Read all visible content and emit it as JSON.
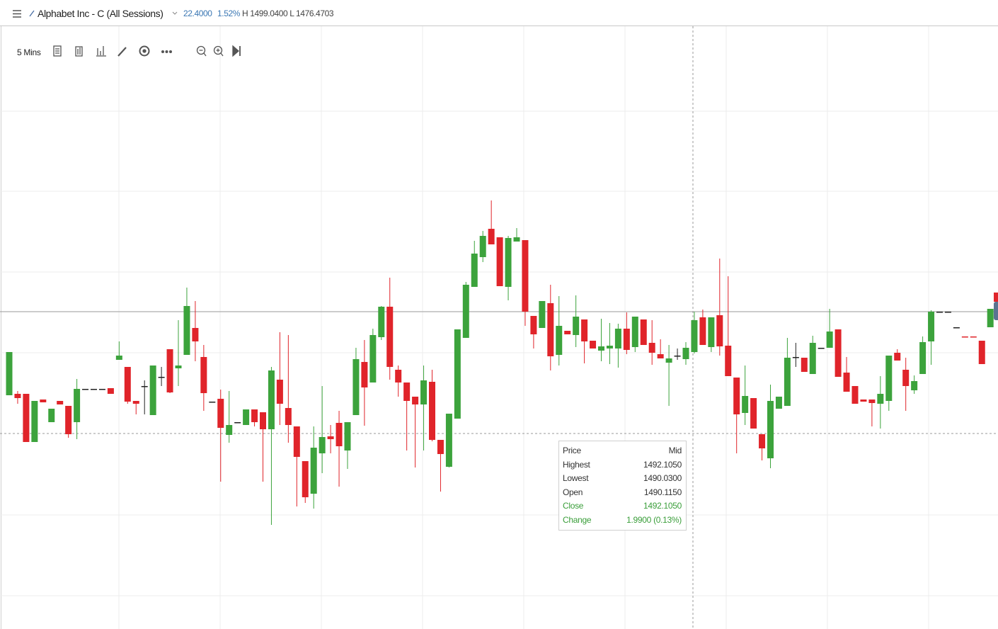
{
  "header": {
    "symbol": "Alphabet Inc - C (All Sessions)",
    "change": "22.4000",
    "change_pct": "1.52%",
    "range": "H 1499.0400 L 1476.4703"
  },
  "toolbar": {
    "interval": "5 Mins"
  },
  "tooltip": {
    "rows": [
      [
        "Price",
        "Mid"
      ],
      [
        "Highest",
        "1492.1050"
      ],
      [
        "Lowest",
        "1490.0300"
      ],
      [
        "Open",
        "1490.1150"
      ],
      [
        "Close",
        "1492.1050"
      ],
      [
        "Change",
        "1.9900 (0.13%)"
      ]
    ]
  },
  "chart_data": {
    "type": "candlestick",
    "ylim": [
      1468.6,
      1511.15
    ],
    "up_color": "#3ca33c",
    "down_color": "#e0242a",
    "flat_color": "#222222",
    "open": [
      1485.1,
      1485.2,
      1485.2,
      1481.8,
      1484.8,
      1483.2,
      1484.7,
      1484.35,
      1483.2,
      1485.55,
      1485.55,
      1485.55,
      1485.6,
      1487.6,
      1487.1,
      1484.7,
      1485.75,
      1483.7,
      1486.4,
      1488.35,
      1487.0,
      1487.95,
      1489.85,
      1487.8,
      1484.65,
      1484.85,
      1482.3,
      1483.2,
      1483.0,
      1484.1,
      1483.9,
      1482.7,
      1486.2,
      1484.2,
      1482.9,
      1480.45,
      1478.15,
      1481.0,
      1482.2,
      1483.15,
      1481.2,
      1483.7,
      1487.45,
      1486.0,
      1489.2,
      1491.35,
      1486.9,
      1486.0,
      1485.0,
      1484.45,
      1486.05,
      1481.95,
      1480.05,
      1483.45,
      1489.15,
      1492.75,
      1494.85,
      1496.85,
      1496.25,
      1492.75,
      1495.95,
      1496.05,
      1490.7,
      1489.85,
      1491.6,
      1487.95,
      1489.65,
      1489.35,
      1490.45,
      1488.95,
      1488.25,
      1488.4,
      1488.4,
      1489.8,
      1488.5,
      1490.45,
      1488.8,
      1488.0,
      1487.4,
      1487.9,
      1487.65,
      1488.15,
      1490.6,
      1488.5,
      1490.75,
      1488.6,
      1486.35,
      1483.85,
      1484.9,
      1482.35,
      1480.65,
      1484.15,
      1484.35,
      1487.8,
      1487.75,
      1486.6,
      1488.45,
      1488.45,
      1489.75,
      1486.7,
      1485.75,
      1484.8,
      1484.8,
      1484.5,
      1484.7,
      1488.1,
      1486.9,
      1485.45,
      1486.6,
      1488.9,
      1491.0,
      1491.0,
      1489.9,
      1489.25,
      1489.25,
      1488.95,
      1489.9
    ],
    "high": [
      1488.15,
      1485.4,
      1485.2,
      1484.7,
      1484.8,
      1484.15,
      1484.7,
      1484.35,
      1486.25,
      1485.55,
      1485.55,
      1485.55,
      1485.6,
      1488.9,
      1487.1,
      1484.7,
      1486.15,
      1487.2,
      1487.1,
      1488.35,
      1490.4,
      1492.7,
      1491.75,
      1488.65,
      1484.65,
      1485.5,
      1485.4,
      1483.2,
      1484.1,
      1484.1,
      1483.9,
      1487.1,
      1489.55,
      1489.35,
      1482.9,
      1480.45,
      1482.9,
      1485.75,
      1483.0,
      1484.0,
      1483.2,
      1488.45,
      1489.0,
      1489.8,
      1491.4,
      1493.4,
      1487.2,
      1486.0,
      1485.0,
      1487.2,
      1486.9,
      1481.95,
      1483.8,
      1489.75,
      1493.1,
      1496.0,
      1496.7,
      1498.85,
      1496.25,
      1496.35,
      1496.9,
      1496.05,
      1490.7,
      1491.75,
      1492.9,
      1492.1,
      1489.65,
      1492.15,
      1490.45,
      1488.95,
      1490.5,
      1490.2,
      1490.15,
      1490.95,
      1490.65,
      1490.45,
      1490.4,
      1489.05,
      1488.65,
      1488.4,
      1488.85,
      1491.0,
      1491.15,
      1490.6,
      1494.75,
      1493.5,
      1486.35,
      1487.2,
      1484.9,
      1482.35,
      1485.85,
      1485.0,
      1489.15,
      1488.8,
      1487.75,
      1489.3,
      1488.45,
      1491.2,
      1489.75,
      1487.8,
      1485.75,
      1484.8,
      1484.8,
      1486.45,
      1487.9,
      1488.35,
      1487.75,
      1486.5,
      1489.25,
      1491.1,
      1491.0,
      1491.0,
      1489.9,
      1489.25,
      1489.25,
      1488.95,
      1491.2
    ],
    "low": [
      1485.1,
      1484.5,
      1481.8,
      1481.8,
      1484.6,
      1483.2,
      1484.45,
      1482.1,
      1482.0,
      1485.55,
      1485.55,
      1485.55,
      1485.2,
      1487.6,
      1484.5,
      1483.75,
      1483.75,
      1483.7,
      1485.75,
      1485.25,
      1485.75,
      1487.95,
      1487.5,
      1484.0,
      1484.65,
      1479.0,
      1481.75,
      1483.2,
      1483.0,
      1482.9,
      1479.0,
      1475.95,
      1483.0,
      1481.75,
      1477.25,
      1477.5,
      1477.1,
      1479.6,
      1481.0,
      1478.65,
      1479.9,
      1483.7,
      1482.95,
      1486.0,
      1489.0,
      1486.2,
      1485.0,
      1481.2,
      1480.0,
      1481.2,
      1481.85,
      1478.3,
      1480.0,
      1483.45,
      1489.15,
      1492.75,
      1494.5,
      1495.75,
      1492.8,
      1491.8,
      1495.95,
      1490.0,
      1488.4,
      1489.85,
      1486.85,
      1487.2,
      1489.4,
      1488.5,
      1487.35,
      1488.4,
      1487.5,
      1487.3,
      1487.05,
      1488.0,
      1488.15,
      1488.65,
      1487.25,
      1487.7,
      1484.35,
      1487.6,
      1487.25,
      1488.05,
      1488.65,
      1488.15,
      1487.9,
      1486.45,
      1481.0,
      1483.0,
      1482.75,
      1480.5,
      1479.95,
      1484.15,
      1484.35,
      1487.1,
      1486.75,
      1486.6,
      1488.45,
      1488.45,
      1486.4,
      1485.35,
      1484.5,
      1484.65,
      1482.9,
      1482.75,
      1484.0,
      1487.55,
      1484.0,
      1485.2,
      1486.6,
      1487.25,
      1491.0,
      1491.0,
      1489.9,
      1489.2,
      1489.2,
      1487.3,
      1489.9
    ],
    "close": [
      1488.15,
      1484.9,
      1481.8,
      1484.7,
      1484.6,
      1484.15,
      1484.45,
      1482.35,
      1485.55,
      1485.55,
      1485.55,
      1485.55,
      1485.2,
      1487.9,
      1484.65,
      1484.5,
      1485.75,
      1487.2,
      1486.4,
      1485.3,
      1487.2,
      1491.4,
      1488.9,
      1485.25,
      1484.65,
      1482.8,
      1483.0,
      1483.2,
      1484.1,
      1483.2,
      1482.7,
      1486.85,
      1484.5,
      1483.0,
      1480.75,
      1477.9,
      1481.4,
      1482.15,
      1482.0,
      1481.5,
      1483.2,
      1487.65,
      1485.65,
      1489.35,
      1491.35,
      1487.1,
      1486.0,
      1484.7,
      1484.45,
      1486.15,
      1481.95,
      1480.95,
      1483.8,
      1489.75,
      1492.9,
      1495.1,
      1496.35,
      1495.75,
      1492.8,
      1496.2,
      1496.25,
      1491.0,
      1489.4,
      1491.75,
      1487.85,
      1490.0,
      1489.4,
      1490.65,
      1488.9,
      1488.4,
      1488.55,
      1488.6,
      1489.8,
      1488.3,
      1490.65,
      1488.65,
      1488.1,
      1487.7,
      1487.7,
      1487.9,
      1488.45,
      1490.4,
      1488.65,
      1490.6,
      1488.55,
      1486.45,
      1483.75,
      1485.05,
      1482.75,
      1481.35,
      1484.7,
      1485.0,
      1487.75,
      1487.8,
      1486.75,
      1488.8,
      1488.45,
      1489.6,
      1486.4,
      1485.35,
      1484.5,
      1484.65,
      1484.55,
      1485.2,
      1487.9,
      1487.55,
      1485.75,
      1486.1,
      1488.85,
      1491.0,
      1491.0,
      1491.0,
      1489.9,
      1489.2,
      1489.2,
      1487.3,
      1491.2
    ]
  }
}
